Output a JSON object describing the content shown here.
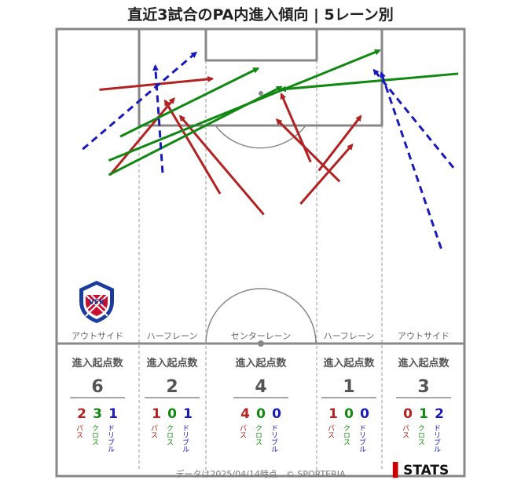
{
  "title": "直近3試合のPA内進入傾向 | 5レーン別",
  "footer": "データは2025/04/14時点　© SPORTERIA",
  "brand": {
    "mark": "▌",
    "name": "STATS"
  },
  "logo": {
    "text": "VENTFORET KOFU"
  },
  "colors": {
    "pass": "#b22222",
    "cross": "#118811",
    "dribble": "#1a1ab8",
    "line": "#888888"
  },
  "lanes": [
    {
      "name": "アウトサイド",
      "header": "進入起点数",
      "total": "6",
      "pass": "2",
      "cross": "3",
      "dribble": "1"
    },
    {
      "name": "ハーフレーン",
      "header": "進入起点数",
      "total": "2",
      "pass": "1",
      "cross": "0",
      "dribble": "1"
    },
    {
      "name": "センターレーン",
      "header": "進入起点数",
      "total": "4",
      "pass": "4",
      "cross": "0",
      "dribble": "0"
    },
    {
      "name": "ハーフレーン",
      "header": "進入起点数",
      "total": "1",
      "pass": "1",
      "cross": "0",
      "dribble": "0"
    },
    {
      "name": "アウトサイド",
      "header": "進入起点数",
      "total": "3",
      "pass": "0",
      "cross": "1",
      "dribble": "2"
    }
  ],
  "type_labels": {
    "pass": "パス",
    "cross": "クロス",
    "dribble": "ドリブル"
  },
  "chart_data": {
    "type": "scatter",
    "title": "直近3試合のPA内進入傾向 | 5レーン別",
    "coordinate_system": "pitch half, x 0-100 left to right, y 0-100 from goal line (0) to halfway line (100)",
    "series": [
      {
        "name": "パス",
        "arrows": [
          {
            "x0": 10.5,
            "y0": 19.3,
            "x1": 38.2,
            "y1": 15.8
          },
          {
            "x0": 13.1,
            "y0": 46.4,
            "x1": 28.8,
            "y1": 22.1
          },
          {
            "x0": 40.1,
            "y0": 52.4,
            "x1": 26.6,
            "y1": 22.8
          },
          {
            "x0": 50.8,
            "y0": 59.0,
            "x1": 30.3,
            "y1": 27.7
          },
          {
            "x0": 62.3,
            "y0": 42.3,
            "x1": 55.1,
            "y1": 20.7
          },
          {
            "x0": 69.4,
            "y0": 48.5,
            "x1": 54.0,
            "y1": 28.8
          },
          {
            "x0": 59.8,
            "y0": 55.6,
            "x1": 72.5,
            "y1": 36.8
          },
          {
            "x0": 64.3,
            "y0": 45.0,
            "x1": 74.6,
            "y1": 27.7
          }
        ]
      },
      {
        "name": "クロス",
        "arrows": [
          {
            "x0": 15.6,
            "y0": 34.2,
            "x1": 49.4,
            "y1": 12.5
          },
          {
            "x0": 12.8,
            "y0": 41.8,
            "x1": 79.2,
            "y1": 6.8
          },
          {
            "x0": 12.8,
            "y0": 46.4,
            "x1": 55.1,
            "y1": 18.4
          },
          {
            "x0": 98.5,
            "y0": 14.2,
            "x1": 55.1,
            "y1": 19.2
          }
        ]
      },
      {
        "name": "ドリブル",
        "arrows": [
          {
            "x0": 6.4,
            "y0": 38.2,
            "x1": 34.2,
            "y1": 7.5
          },
          {
            "x0": 26.0,
            "y0": 45.7,
            "x1": 24.2,
            "y1": 11.7
          },
          {
            "x0": 97.3,
            "y0": 44.1,
            "x1": 77.8,
            "y1": 13.0
          },
          {
            "x0": 94.3,
            "y0": 69.8,
            "x1": 79.6,
            "y1": 13.9
          }
        ]
      }
    ]
  }
}
